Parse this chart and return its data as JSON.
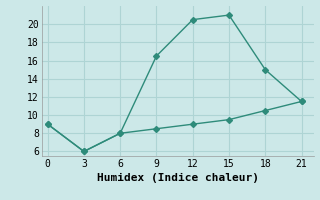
{
  "line1_x": [
    0,
    3,
    6,
    9,
    12,
    15,
    18,
    21
  ],
  "line1_y": [
    9,
    6,
    8,
    16.5,
    20.5,
    21,
    15,
    11.5
  ],
  "line2_x": [
    0,
    3,
    6,
    9,
    12,
    15,
    18,
    21
  ],
  "line2_y": [
    9,
    6,
    8,
    8.5,
    9,
    9.5,
    10.5,
    11.5
  ],
  "line_color": "#2e8b7a",
  "xlabel": "Humidex (Indice chaleur)",
  "xlim": [
    -0.5,
    22
  ],
  "ylim": [
    5.5,
    22
  ],
  "xticks": [
    0,
    3,
    6,
    9,
    12,
    15,
    18,
    21
  ],
  "yticks": [
    6,
    8,
    10,
    12,
    14,
    16,
    18,
    20
  ],
  "background_color": "#cce8e8",
  "grid_color": "#aed4d4",
  "font_family": "monospace",
  "tick_fontsize": 7,
  "xlabel_fontsize": 8
}
